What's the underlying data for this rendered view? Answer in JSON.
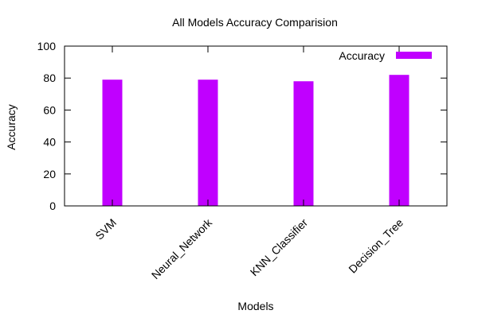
{
  "chart_data": {
    "type": "bar",
    "title": "All Models Accuracy Comparision",
    "xlabel": "Models",
    "ylabel": "Accuracy",
    "categories": [
      "SVM",
      "Neural_Network",
      "KNN_Classifier",
      "Decision_Tree"
    ],
    "series": [
      {
        "name": "Accuracy",
        "values": [
          79,
          79,
          78,
          82
        ]
      }
    ],
    "ylim": [
      0,
      100
    ],
    "yticks": [
      "0",
      "20",
      "40",
      "60",
      "80",
      "100"
    ],
    "grid": false,
    "legend": "top-right",
    "colors": {
      "bar": "#c000ff",
      "axis": "#000000"
    }
  }
}
